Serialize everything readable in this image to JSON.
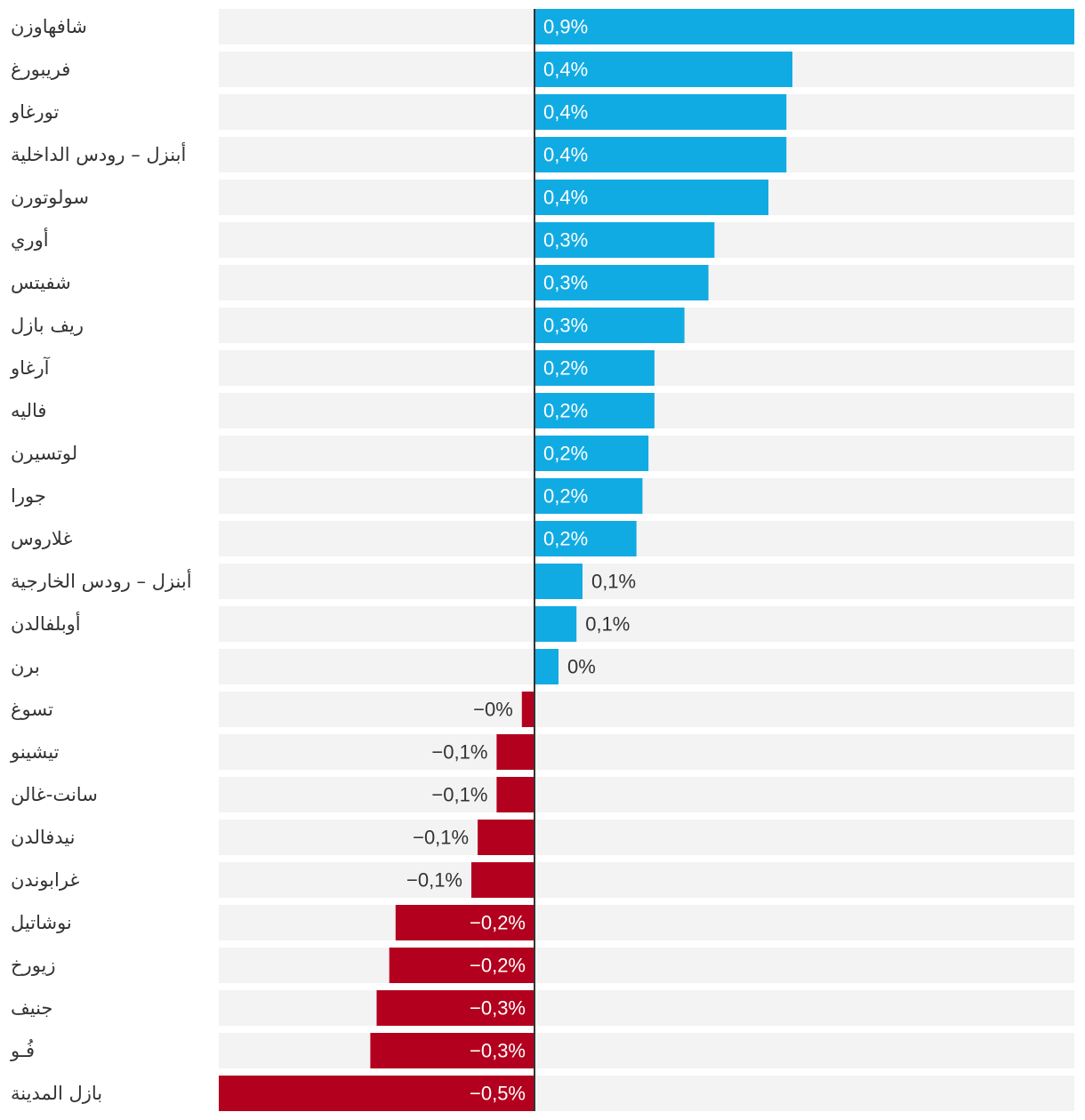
{
  "colors": {
    "positive": "#11abe3",
    "negative": "#b3001e",
    "track": "#f3f3f3",
    "axis": "#333333",
    "label_text": "#333333",
    "inside_value_text": "#ffffff",
    "outside_value_text": "#333333"
  },
  "chart_data": {
    "type": "bar",
    "orientation": "horizontal",
    "title": "",
    "xlabel": "",
    "ylabel": "",
    "xlim": [
      -0.5,
      0.9
    ],
    "grid": false,
    "legend": "none",
    "categories": [
      "شافهاوزن",
      "فريبورغ",
      "تورغاو",
      "أبنزل – رودس الداخلية",
      "سولوتورن",
      "أوري",
      "شفيتس",
      "ريف بازل",
      "آرغاو",
      "فاليه",
      "لوتسيرن",
      "جورا",
      "غلاروس",
      "أبنزل – رودس الخارجية",
      "أوبلفالدن",
      "برن",
      "تسوغ",
      "تيشينو",
      "سانت-غالن",
      "نيدفالدن",
      "غرابوندن",
      "نوشاتيل",
      "زيورخ",
      "جنيف",
      "فُـو",
      "بازل المدينة"
    ],
    "values": [
      0.9,
      0.43,
      0.42,
      0.42,
      0.39,
      0.3,
      0.29,
      0.25,
      0.2,
      0.2,
      0.19,
      0.18,
      0.17,
      0.08,
      0.07,
      0.04,
      -0.02,
      -0.06,
      -0.06,
      -0.09,
      -0.1,
      -0.22,
      -0.23,
      -0.25,
      -0.26,
      -0.5
    ],
    "value_labels": [
      "0,9%",
      "0,4%",
      "0,4%",
      "0,4%",
      "0,4%",
      "0,3%",
      "0,3%",
      "0,3%",
      "0,2%",
      "0,2%",
      "0,2%",
      "0,2%",
      "0,2%",
      "0,1%",
      "0,1%",
      "0%",
      "−0%",
      "−0,1%",
      "−0,1%",
      "−0,1%",
      "−0,1%",
      "−0,2%",
      "−0,2%",
      "−0,3%",
      "−0,3%",
      "−0,5%"
    ]
  }
}
